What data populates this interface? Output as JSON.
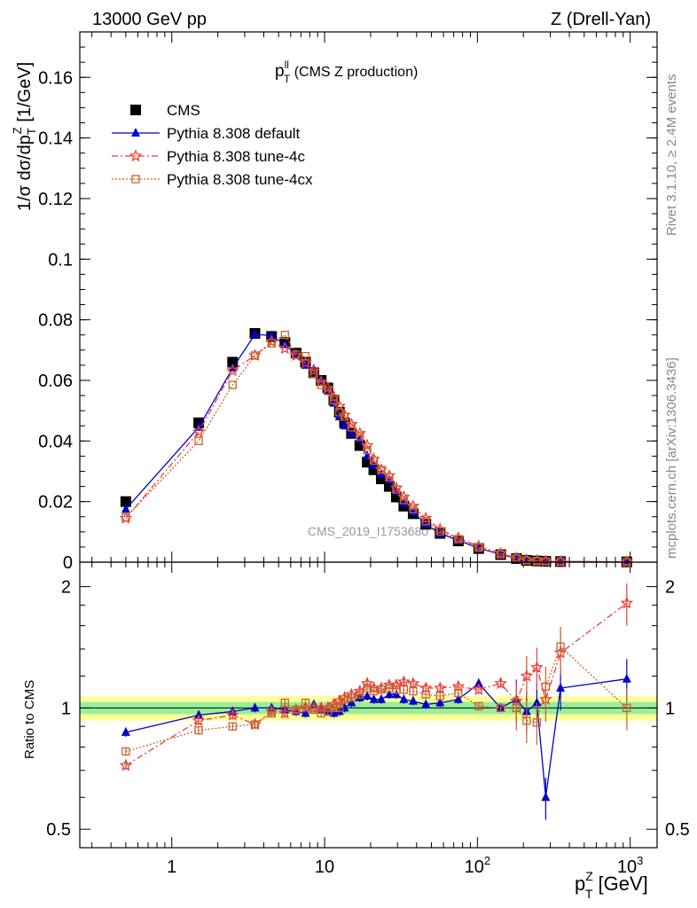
{
  "header": {
    "left": "13000 GeV pp",
    "right": "Z (Drell-Yan)",
    "plot_title_main": "p",
    "plot_title_sup": "ll",
    "plot_title_sub": "T",
    "plot_title_rest": " (CMS Z production)"
  },
  "side": {
    "rivet": "Rivet 3.1.10, ≥ 2.4M events",
    "mcplots": "mcplots.cern.ch [arXiv:1306.3436]"
  },
  "watermark": "CMS_2019_I1753680",
  "legend": [
    {
      "label": "CMS",
      "color": "#000000",
      "marker": "square"
    },
    {
      "label": "Pythia 8.308 default",
      "color": "#0000cc",
      "marker": "triangle"
    },
    {
      "label": "Pythia 8.308 tune-4c",
      "color": "#e8413a",
      "marker": "star"
    },
    {
      "label": "Pythia 8.308 tune-4cx",
      "color": "#c8642a",
      "marker": "open-square"
    }
  ],
  "axes": {
    "main_ylabel": "1/σ dσ/dp",
    "main_ylabel_sub": "T",
    "main_ylabel_sup": "Z",
    "main_ylabel_unit": " [1/GeV]",
    "ratio_ylabel": "Ratio to CMS",
    "xlabel": "p",
    "xlabel_sup": "Z",
    "xlabel_sub": "T",
    "xlabel_unit": " [GeV]",
    "x_ticks": [
      {
        "value": 1,
        "label": "1"
      },
      {
        "value": 10,
        "label": "10"
      },
      {
        "value": 100,
        "label": "10",
        "exp": "2"
      },
      {
        "value": 1000,
        "label": "10",
        "exp": "3"
      }
    ],
    "main_yticks": [
      "0",
      "0.02",
      "0.04",
      "0.06",
      "0.08",
      "0.1",
      "0.12",
      "0.14",
      "0.16"
    ],
    "ratio_yticks": [
      "0.5",
      "1",
      "2"
    ]
  },
  "chart_data": {
    "type": "scatter",
    "xscale": "log",
    "xlim": [
      0.25,
      1500
    ],
    "ylim": [
      0,
      0.175
    ],
    "ratio_ylim": [
      0.45,
      2.3
    ],
    "x": [
      0.5,
      1.5,
      2.5,
      3.5,
      4.5,
      5.5,
      6.5,
      7.5,
      8.5,
      9.5,
      10.5,
      11.5,
      12.5,
      13.5,
      15,
      17,
      19,
      21,
      23.5,
      26.5,
      29.5,
      33,
      38,
      46,
      57,
      75,
      102,
      142,
      180,
      210,
      245,
      280,
      350,
      950
    ],
    "series": [
      {
        "name": "CMS",
        "values": [
          0.02,
          0.046,
          0.066,
          0.0755,
          0.0745,
          0.0725,
          0.069,
          0.066,
          0.0625,
          0.06,
          0.0575,
          0.0535,
          0.0495,
          0.046,
          0.0425,
          0.0385,
          0.033,
          0.0305,
          0.0275,
          0.025,
          0.0215,
          0.0185,
          0.016,
          0.0125,
          0.0095,
          0.007,
          0.0045,
          0.0025,
          0.0012,
          0.0006,
          0.0004,
          0.0003,
          0.0002,
          0.0001
        ]
      },
      {
        "name": "Pythia 8.308 default",
        "values": [
          0.0175,
          0.0445,
          0.064,
          0.0752,
          0.0748,
          0.0718,
          0.0685,
          0.065,
          0.0638,
          0.06,
          0.0565,
          0.0525,
          0.048,
          0.045,
          0.0425,
          0.0405,
          0.035,
          0.032,
          0.029,
          0.027,
          0.0235,
          0.0195,
          0.0165,
          0.0125,
          0.0095,
          0.0072,
          0.0046,
          0.0026,
          0.0012,
          0.0006,
          0.0004,
          0.0003,
          0.0002,
          0.0001
        ]
      },
      {
        "name": "Pythia 8.308 tune-4c",
        "values": [
          0.0145,
          0.043,
          0.0632,
          0.0682,
          0.0728,
          0.0705,
          0.0682,
          0.0658,
          0.0632,
          0.0595,
          0.0575,
          0.0545,
          0.0515,
          0.0485,
          0.0455,
          0.0425,
          0.0385,
          0.034,
          0.0305,
          0.0285,
          0.0245,
          0.0215,
          0.0185,
          0.0145,
          0.0108,
          0.008,
          0.0052,
          0.0029,
          0.0014,
          0.0007,
          0.0005,
          0.0003,
          0.0002,
          0.0001
        ]
      },
      {
        "name": "Pythia 8.308 tune-4cx",
        "values": [
          0.0148,
          0.04,
          0.0585,
          0.0682,
          0.0722,
          0.075,
          0.0685,
          0.068,
          0.0622,
          0.0585,
          0.0565,
          0.0535,
          0.0495,
          0.048,
          0.0445,
          0.0415,
          0.037,
          0.0335,
          0.0305,
          0.028,
          0.024,
          0.0205,
          0.0175,
          0.0135,
          0.0102,
          0.0076,
          0.0048,
          0.0026,
          0.0013,
          0.0006,
          0.0004,
          0.0003,
          0.0002,
          0.0001
        ]
      }
    ],
    "ratios": [
      {
        "name": "Pythia 8.308 default",
        "values": [
          0.87,
          0.96,
          0.98,
          1.0,
          1.0,
          0.99,
          0.98,
          0.97,
          1.02,
          0.99,
          0.98,
          0.97,
          0.98,
          1.0,
          1.03,
          1.06,
          1.07,
          1.05,
          1.05,
          1.08,
          1.08,
          1.05,
          1.04,
          1.02,
          1.03,
          1.05,
          1.15,
          1.0,
          1.05,
          0.98,
          1.03,
          0.6,
          1.12,
          1.18
        ]
      },
      {
        "name": "Pythia 8.308 tune-4c",
        "values": [
          0.72,
          0.93,
          0.96,
          0.91,
          0.98,
          0.97,
          0.99,
          1.0,
          1.0,
          1.0,
          1.0,
          1.02,
          1.04,
          1.06,
          1.08,
          1.1,
          1.15,
          1.12,
          1.12,
          1.14,
          1.14,
          1.16,
          1.15,
          1.12,
          1.12,
          1.13,
          1.11,
          1.15,
          1.04,
          1.2,
          1.26,
          1.05,
          1.37,
          1.82
        ]
      },
      {
        "name": "Pythia 8.308 tune-4cx",
        "values": [
          0.78,
          0.88,
          0.9,
          0.91,
          0.97,
          1.03,
          0.99,
          1.03,
          0.99,
          0.97,
          0.98,
          1.0,
          1.0,
          1.05,
          1.06,
          1.08,
          1.12,
          1.1,
          1.11,
          1.12,
          1.11,
          1.11,
          1.1,
          1.08,
          1.07,
          1.09,
          1.01,
          1.0,
          1.0,
          0.93,
          0.92,
          1.13,
          1.42,
          1.0
        ]
      }
    ],
    "ratio_band_inner": 0.035,
    "ratio_band_outer": 0.07
  }
}
